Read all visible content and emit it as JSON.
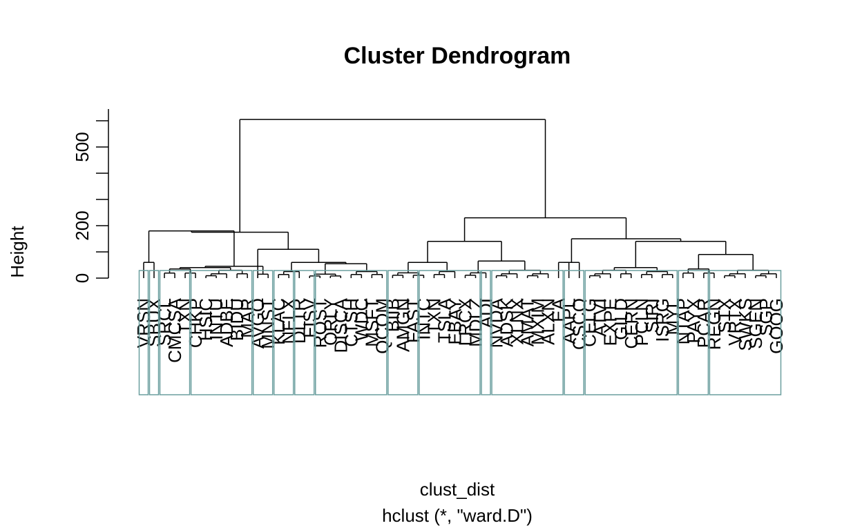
{
  "chart_data": {
    "type": "dendrogram",
    "title": "Cluster Dendrogram",
    "xlabel": "clust_dist",
    "sublabel": "hclust (*, \"ward.D\")",
    "ylabel": "Height",
    "y_ticks": [
      0,
      200,
      500
    ],
    "y_minor_ticks": [
      100,
      300,
      400,
      600
    ],
    "ylim": [
      0,
      620
    ],
    "leaf_labels": [
      "VRSN",
      "SBUX",
      "SRCL",
      "CMCSA",
      "TXN",
      "CHKP",
      "HSIC",
      "INTU",
      "ADBE",
      "BIDU",
      "MAR",
      "AVGO",
      "MNST",
      "KLAC",
      "NFLX",
      "DLTR",
      "FISV",
      "ROST",
      "ORLY",
      "DISCA",
      "CTSH",
      "WDC",
      "MSFT",
      "QCOM",
      "BIIB",
      "AMGN",
      "FAST",
      "INTC",
      "TXN",
      "TSLA",
      "EBAY",
      "LRCX",
      "MDLZ",
      "ADI",
      "NVDA",
      "ADSK",
      "XLNX",
      "AMAT",
      "MXIM",
      "ALXN",
      "EA",
      "AAPL",
      "CSCO",
      "CELG",
      "ATVI",
      "EXPE",
      "GILD",
      "CERN",
      "PCLN",
      "SIRI",
      "ISRG",
      "MYL",
      "NTAP",
      "PAYX",
      "PCAR",
      "REGN",
      "STX",
      "VRTX",
      "SWKS",
      "SGEN",
      "SGP",
      "GOOG"
    ],
    "top_merges": [
      {
        "height": 605
      },
      {
        "height": 230
      },
      {
        "height": 175
      },
      {
        "height": 150
      },
      {
        "height": 140
      },
      {
        "height": 115
      },
      {
        "height": 110
      },
      {
        "height": 90
      }
    ],
    "cluster_boxes": 16,
    "box_color": "#6a9e9e",
    "line_color": "#000000"
  }
}
